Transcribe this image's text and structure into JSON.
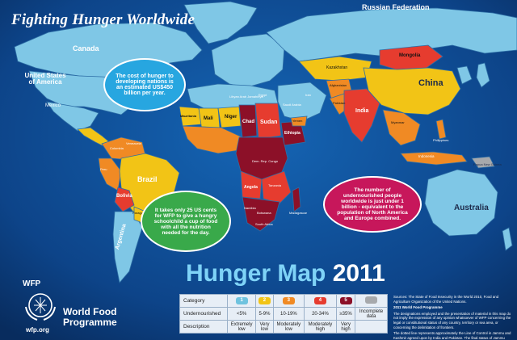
{
  "title": "Fighting Hunger Worldwide",
  "map_title": {
    "main": "Hunger Map",
    "year": "2011"
  },
  "bubbles": {
    "cost": "The cost of hunger to developing nations is an estimated US$450 billion per year.",
    "cents": "It takes only 25 US cents for WFP to give a hungry schoolchild a cup of food with all the nutrition needed for the day.",
    "undernourished": "The number of undernourished people worldwide is just under 1 billion - equivalent to the population of North America and Europe combined."
  },
  "countries": {
    "russia": "Russian Federation",
    "canada": "Canada",
    "usa": "United States of America",
    "mexico": "Mexico",
    "brazil": "Brazil",
    "bolivia": "Bolivia",
    "argentina": "Argentina",
    "chad": "Chad",
    "niger": "Niger",
    "mali": "Mali",
    "sudan": "Sudan",
    "ethiopia": "Ethiopia",
    "angola": "Angola",
    "mongolia": "Mongolia",
    "china": "China",
    "india": "India",
    "australia": "Australia",
    "png": "Papua New Guinea",
    "indonesia": "Indonesia",
    "mauritania": "Mauritania",
    "egypt": "Egypt",
    "libya": "Libyan Arab Jamahiriya",
    "namibia": "Namibia",
    "botswana": "Botswana",
    "madagascar": "Madagascar",
    "tanzania": "Tanzania",
    "congo": "Dem. Rep. Congo",
    "peru": "Peru",
    "colombia": "Colombia",
    "venezuela": "Venezuela",
    "paraguay": "Paraguay",
    "south_africa": "South Africa",
    "kazakhstan": "Kazakhstan",
    "iran": "Iran",
    "saudi": "Saudi Arabia",
    "yemen": "Yemen",
    "afghanistan": "Afghanistan",
    "pakistan": "Pakistan",
    "myanmar": "Myanmar",
    "philippines": "Philippines"
  },
  "legend": {
    "row_labels": [
      "Category",
      "Undernourished",
      "Description"
    ],
    "categories": [
      "1",
      "2",
      "3",
      "4",
      "5",
      ""
    ],
    "colors": [
      "#6fc3df",
      "#f2c416",
      "#f08a24",
      "#e63c2f",
      "#8c1028",
      "#a7a9ac"
    ],
    "undernourished": [
      "<5%",
      "5-9%",
      "10-19%",
      "20-34%",
      "≥35%",
      "Incomplete data"
    ],
    "descriptions": [
      "Extremely low",
      "Very low",
      "Moderately low",
      "Moderately high",
      "Very high",
      ""
    ]
  },
  "source": {
    "line1": "Sources: The State of Food Insecurity in the World 2010, Food and Agriculture Organization of the United Nations.",
    "line2": "2011 World Food Programme",
    "line3": "The designations employed and the presentation of material in this map do not imply the expression of any opinion whatsoever of WFP concerning the legal or constitutional status of any country, territory or sea area, or concerning the delimitation of frontiers.",
    "line4": "The dotted line represents approximately the Line of Control in Jammu and Kashmir agreed upon by India and Pakistan. The final status of Jammu and Kashmir has not yet been agreed upon by the parties."
  },
  "wfp": {
    "abbr": "WFP",
    "name": "World Food\nProgramme",
    "url": "wfp.org"
  }
}
